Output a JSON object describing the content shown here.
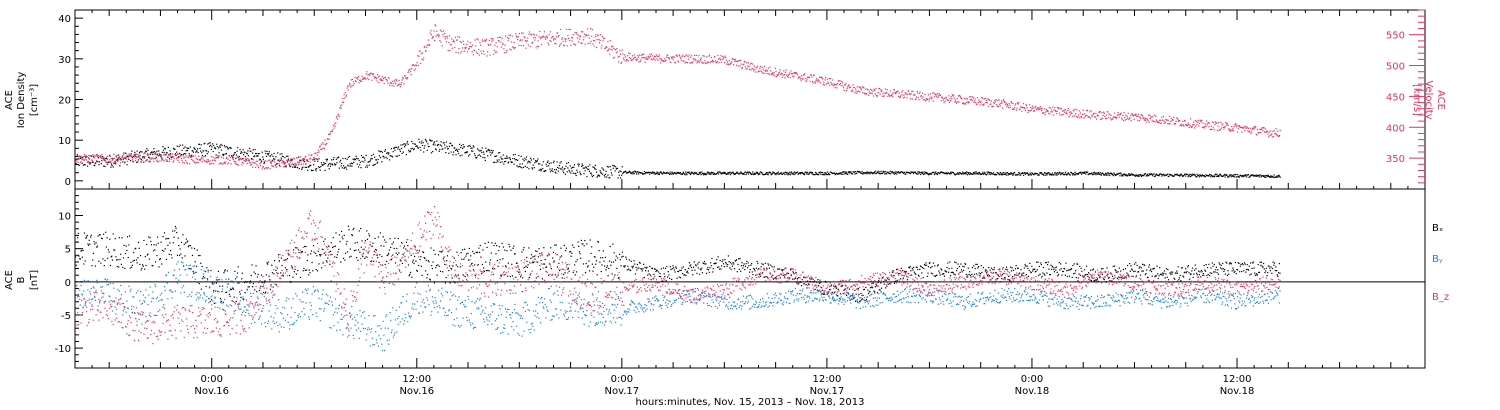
{
  "chart_data": [
    {
      "type": "scatter",
      "panel": "top",
      "ylabel_left": [
        "ACE",
        "Ion Density",
        "[cm⁻³]"
      ],
      "ylabel_right": [
        "ACE",
        "Velocity",
        "[km/s]"
      ],
      "ylim_left": [
        -2,
        42
      ],
      "yticks_left": [
        0,
        10,
        20,
        30,
        40
      ],
      "ylim_right": [
        300,
        590
      ],
      "yticks_right": [
        350,
        400,
        450,
        500,
        550
      ],
      "colors": {
        "density": "#000000",
        "velocity": "#e8335f"
      },
      "series": [
        {
          "axis": "left",
          "x": [
            -6,
            -3,
            0,
            3,
            6,
            9,
            12,
            15,
            18,
            21,
            24,
            27,
            30,
            33,
            36,
            39,
            42,
            45,
            48,
            51,
            54,
            57,
            60,
            62
          ],
          "values": [
            5,
            7,
            8,
            6,
            4,
            5,
            9,
            7.5,
            5,
            3,
            2.2,
            2,
            2,
            2,
            2,
            2.2,
            2,
            2,
            1.8,
            2,
            1.6,
            1.5,
            1.4,
            1.3
          ]
        },
        {
          "axis": "right",
          "x": [
            -6,
            -3,
            -1,
            1,
            3,
            5,
            6,
            7,
            8,
            9,
            10,
            11,
            12,
            13,
            14,
            16,
            18,
            20,
            22,
            24,
            26,
            28,
            30,
            32,
            34,
            36,
            38,
            40,
            42,
            44,
            46,
            48,
            50,
            52,
            54,
            56,
            58,
            60,
            62
          ],
          "values": [
            350,
            352,
            348,
            348,
            340,
            345,
            352,
            390,
            470,
            485,
            478,
            470,
            505,
            555,
            535,
            530,
            540,
            545,
            550,
            515,
            512,
            512,
            510,
            495,
            485,
            475,
            460,
            455,
            450,
            445,
            440,
            430,
            425,
            420,
            418,
            412,
            405,
            400,
            392
          ]
        }
      ]
    },
    {
      "type": "scatter",
      "panel": "bottom",
      "ylabel": [
        "ACE",
        "B",
        "[nT]"
      ],
      "ylim": [
        -13,
        14
      ],
      "yticks": [
        -10,
        -5,
        0,
        5,
        10
      ],
      "series": [
        {
          "name": "Bₓ",
          "color": "#000000",
          "x": [
            -6,
            -4,
            -2,
            -1,
            0,
            2,
            4,
            6,
            8,
            10,
            12,
            14,
            16,
            18,
            20,
            22,
            24,
            26,
            28,
            30,
            32,
            34,
            36,
            38,
            40,
            42,
            44,
            46,
            48,
            50,
            52,
            54,
            56,
            58,
            60,
            62
          ],
          "values": [
            5,
            4,
            6,
            3,
            -1,
            0,
            2,
            4,
            6,
            5,
            3,
            2,
            4,
            3,
            3,
            4,
            3,
            1,
            2,
            3,
            2,
            1,
            -1,
            -2,
            1,
            2,
            2,
            1,
            2,
            2,
            1,
            2,
            1,
            2,
            2,
            2
          ]
        },
        {
          "name": "Bᵧ",
          "color": "#1a7fe8",
          "x": [
            -6,
            -4,
            -2,
            0,
            2,
            4,
            6,
            8,
            10,
            12,
            14,
            16,
            18,
            20,
            22,
            24,
            26,
            28,
            30,
            32,
            34,
            36,
            38,
            40,
            42,
            44,
            46,
            48,
            50,
            52,
            54,
            56,
            58,
            60,
            62
          ],
          "values": [
            -2,
            -4,
            1,
            -1,
            -3,
            -5,
            -3,
            -6,
            -8,
            -2,
            -4,
            -5,
            -6,
            -3,
            -4,
            -4,
            -3,
            -2,
            -3,
            -3,
            -2,
            -2,
            -3,
            -2,
            -2,
            -3,
            -2,
            -2,
            -3,
            -3,
            -2,
            -3,
            -2,
            -3,
            -2
          ]
        },
        {
          "name": "B_z",
          "color": "#e8335f",
          "x": [
            -6,
            -4,
            -2,
            0,
            2,
            4,
            6,
            8,
            9,
            10,
            12,
            13,
            14,
            16,
            18,
            20,
            22,
            24,
            26,
            28,
            30,
            32,
            34,
            36,
            38,
            40,
            42,
            44,
            46,
            48,
            50,
            52,
            54,
            56,
            58,
            60,
            62
          ],
          "values": [
            -4,
            -7,
            -6,
            -6,
            -5,
            2,
            9,
            -5,
            5,
            0,
            6,
            10,
            2,
            0,
            1,
            2,
            -2,
            -1,
            0,
            -2,
            -1,
            1,
            1,
            -1,
            0,
            1,
            -1,
            0,
            1,
            0,
            -1,
            1,
            0,
            -1,
            0,
            -1,
            0
          ]
        }
      ]
    }
  ],
  "x_axis": {
    "range_hours": [
      -8,
      71
    ],
    "ticks": [
      {
        "h": 0,
        "time": "0:00",
        "date": "Nov.16"
      },
      {
        "h": 12,
        "time": "12:00",
        "date": "Nov.16"
      },
      {
        "h": 24,
        "time": "0:00",
        "date": "Nov.17"
      },
      {
        "h": 36,
        "time": "12:00",
        "date": "Nov.17"
      },
      {
        "h": 48,
        "time": "0:00",
        "date": "Nov.18"
      },
      {
        "h": 60,
        "time": "12:00",
        "date": "Nov.18"
      }
    ],
    "caption": "hours:minutes, Nov. 15, 2013 – Nov. 18, 2013"
  }
}
